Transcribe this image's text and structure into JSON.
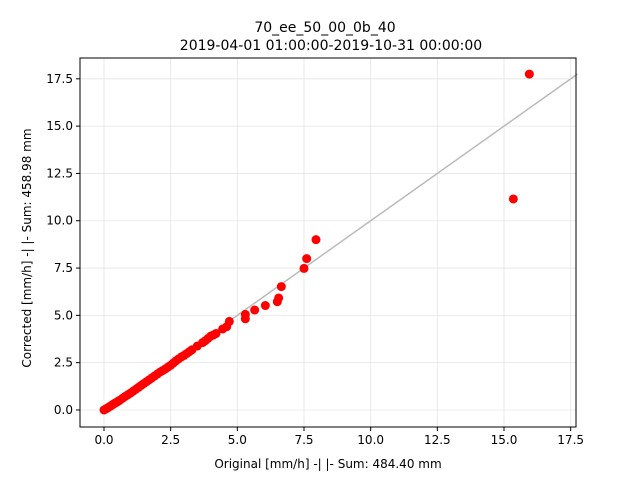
{
  "chart_data": {
    "type": "scatter",
    "title": "70_ee_50_00_0b_40",
    "subtitle": "2019-04-01 01:00:00-2019-10-31 00:00:00",
    "xlabel": "Original [mm/h] -| |- Sum: 484.40 mm",
    "ylabel": "Corrected [mm/h] -| |- Sum: 458.98 mm",
    "xlim": [
      -0.9,
      17.7
    ],
    "ylim": [
      -0.9,
      18.6
    ],
    "xticks": [
      0.0,
      2.5,
      5.0,
      7.5,
      10.0,
      12.5,
      15.0,
      17.5
    ],
    "yticks": [
      0.0,
      2.5,
      5.0,
      7.5,
      10.0,
      12.5,
      15.0,
      17.5
    ],
    "grid": true,
    "point_color": "#ff0000",
    "reference_line": {
      "x": [
        0,
        17.75
      ],
      "y": [
        0,
        17.75
      ],
      "color": "#bbbbbb"
    },
    "points": [
      [
        0.0,
        0.0
      ],
      [
        0.05,
        0.04
      ],
      [
        0.1,
        0.08
      ],
      [
        0.15,
        0.12
      ],
      [
        0.2,
        0.17
      ],
      [
        0.25,
        0.21
      ],
      [
        0.3,
        0.26
      ],
      [
        0.35,
        0.3
      ],
      [
        0.4,
        0.35
      ],
      [
        0.45,
        0.39
      ],
      [
        0.5,
        0.43
      ],
      [
        0.55,
        0.48
      ],
      [
        0.6,
        0.52
      ],
      [
        0.7,
        0.62
      ],
      [
        0.8,
        0.72
      ],
      [
        0.9,
        0.81
      ],
      [
        1.0,
        0.9
      ],
      [
        1.1,
        1.0
      ],
      [
        1.2,
        1.1
      ],
      [
        1.3,
        1.2
      ],
      [
        1.4,
        1.3
      ],
      [
        1.5,
        1.4
      ],
      [
        1.6,
        1.5
      ],
      [
        1.7,
        1.6
      ],
      [
        1.8,
        1.7
      ],
      [
        1.9,
        1.8
      ],
      [
        2.0,
        1.9
      ],
      [
        2.1,
        2.0
      ],
      [
        2.2,
        2.08
      ],
      [
        2.3,
        2.17
      ],
      [
        2.4,
        2.27
      ],
      [
        2.5,
        2.36
      ],
      [
        2.6,
        2.48
      ],
      [
        2.7,
        2.6
      ],
      [
        2.8,
        2.7
      ],
      [
        2.9,
        2.8
      ],
      [
        3.0,
        2.88
      ],
      [
        3.1,
        2.98
      ],
      [
        3.2,
        3.08
      ],
      [
        3.3,
        3.18
      ],
      [
        3.5,
        3.38
      ],
      [
        3.7,
        3.56
      ],
      [
        3.8,
        3.66
      ],
      [
        3.9,
        3.78
      ],
      [
        4.0,
        3.9
      ],
      [
        4.1,
        3.96
      ],
      [
        4.2,
        4.04
      ],
      [
        4.45,
        4.28
      ],
      [
        4.6,
        4.4
      ],
      [
        4.7,
        4.68
      ],
      [
        5.3,
        4.82
      ],
      [
        5.3,
        5.05
      ],
      [
        5.65,
        5.28
      ],
      [
        6.05,
        5.52
      ],
      [
        6.5,
        5.72
      ],
      [
        6.55,
        5.92
      ],
      [
        6.65,
        6.52
      ],
      [
        7.5,
        7.48
      ],
      [
        7.6,
        8.0
      ],
      [
        7.95,
        9.0
      ],
      [
        15.35,
        11.15
      ],
      [
        15.95,
        17.75
      ]
    ]
  }
}
